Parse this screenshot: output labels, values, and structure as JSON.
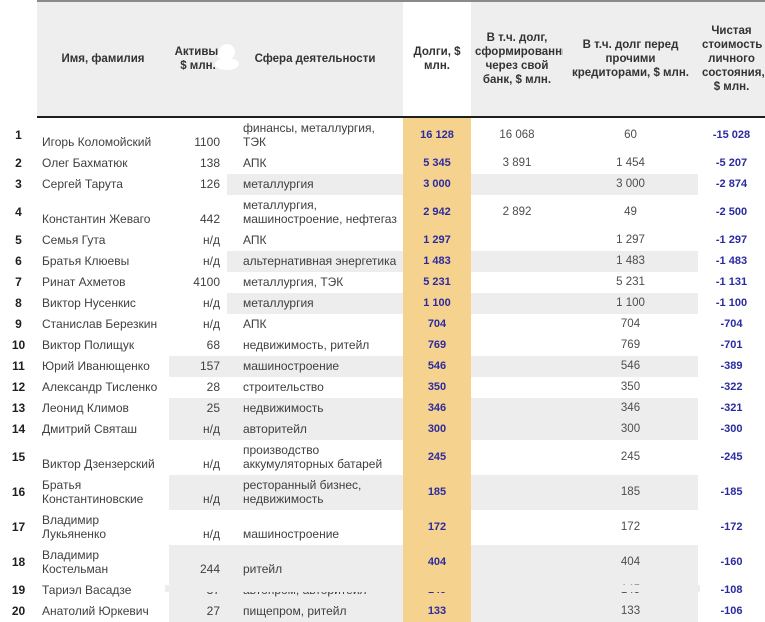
{
  "table": {
    "columns": [
      {
        "key": "name",
        "label": "Имя, фамилия"
      },
      {
        "key": "assets",
        "label": "Активы, $ млн."
      },
      {
        "key": "sphere",
        "label": "Сфера деятельности"
      },
      {
        "key": "debts",
        "label": "Долги, $ млн."
      },
      {
        "key": "own_bank",
        "label": "В т.ч. долг, сформированный через свой банк, $ млн."
      },
      {
        "key": "other_creditors",
        "label": "В т.ч. долг перед прочими кредиторами, $ млн."
      },
      {
        "key": "net_worth",
        "label": "Чистая стоимость личного состояния, $ млн."
      }
    ],
    "rows": [
      {
        "rank": "1",
        "name": "Игорь Коломойский",
        "assets": "1100",
        "sphere": "финансы, металлургия, ТЭК",
        "debts": "16 128",
        "own_bank": "16 068",
        "other_creditors": "60",
        "net_worth": "-15 028",
        "band": "none"
      },
      {
        "rank": "2",
        "name": "Олег Бахматюк",
        "assets": "138",
        "sphere": "АПК",
        "debts": "5 345",
        "own_bank": "3 891",
        "other_creditors": "1 454",
        "net_worth": "-5 207",
        "band": "none"
      },
      {
        "rank": "3",
        "name": "Сергей Тарута",
        "assets": "126",
        "sphere": "металлургия",
        "debts": "3 000",
        "own_bank": "",
        "other_creditors": "3 000",
        "net_worth": "-2 874",
        "band": "sphere"
      },
      {
        "rank": "4",
        "name": "Константин Жеваго",
        "assets": "442",
        "sphere": "металлургия, машиностроение, нефтегаз",
        "debts": "2 942",
        "own_bank": "2 892",
        "other_creditors": "49",
        "net_worth": "-2 500",
        "band": "none"
      },
      {
        "rank": "5",
        "name": "Семья Гута",
        "assets": "н/д",
        "sphere": "АПК",
        "debts": "1 297",
        "own_bank": "",
        "other_creditors": "1 297",
        "net_worth": "-1 297",
        "band": "none"
      },
      {
        "rank": "6",
        "name": "Братья Клюевы",
        "assets": "н/д",
        "sphere": "альтернативная энергетика",
        "debts": "1 483",
        "own_bank": "",
        "other_creditors": "1 483",
        "net_worth": "-1 483",
        "band": "sphere"
      },
      {
        "rank": "7",
        "name": "Ринат Ахметов",
        "assets": "4100",
        "sphere": "металлургия, ТЭК",
        "debts": "5 231",
        "own_bank": "",
        "other_creditors": "5 231",
        "net_worth": "-1 131",
        "band": "none"
      },
      {
        "rank": "8",
        "name": "Виктор Нусенкис",
        "assets": "н/д",
        "sphere": "металлургия",
        "debts": "1 100",
        "own_bank": "",
        "other_creditors": "1 100",
        "net_worth": "-1 100",
        "band": "sphere"
      },
      {
        "rank": "9",
        "name": "Станислав Березкин",
        "assets": "н/д",
        "sphere": "АПК",
        "debts": "704",
        "own_bank": "",
        "other_creditors": "704",
        "net_worth": "-704",
        "band": "none"
      },
      {
        "rank": "10",
        "name": "Виктор Полищук",
        "assets": "68",
        "sphere": "недвижимость, ритейл",
        "debts": "769",
        "own_bank": "",
        "other_creditors": "769",
        "net_worth": "-701",
        "band": "none"
      },
      {
        "rank": "11",
        "name": "Юрий Иванющенко",
        "assets": "157",
        "sphere": "машиностроение",
        "debts": "546",
        "own_bank": "",
        "other_creditors": "546",
        "net_worth": "-389",
        "band": "assets"
      },
      {
        "rank": "12",
        "name": "Александр Тисленко",
        "assets": "28",
        "sphere": "строительство",
        "debts": "350",
        "own_bank": "",
        "other_creditors": "350",
        "net_worth": "-322",
        "band": "none"
      },
      {
        "rank": "13",
        "name": "Леонид Климов",
        "assets": "25",
        "sphere": "недвижимость",
        "debts": "346",
        "own_bank": "",
        "other_creditors": "346",
        "net_worth": "-321",
        "band": "assets"
      },
      {
        "rank": "14",
        "name": "Дмитрий Святаш",
        "assets": "н/д",
        "sphere": "авторитейл",
        "debts": "300",
        "own_bank": "",
        "other_creditors": "300",
        "net_worth": "-300",
        "band": "assets"
      },
      {
        "rank": "15",
        "name": "Виктор Дзензерский",
        "assets": "н/д",
        "sphere": "производство аккумуляторных батарей",
        "debts": "245",
        "own_bank": "",
        "other_creditors": "245",
        "net_worth": "-245",
        "band": "none"
      },
      {
        "rank": "16",
        "name": "Братья Константиновские",
        "assets": "н/д",
        "sphere": "ресторанный бизнес, недвижимость",
        "debts": "185",
        "own_bank": "",
        "other_creditors": "185",
        "net_worth": "-185",
        "band": "assets"
      },
      {
        "rank": "17",
        "name": "Владимир Лукьяненко",
        "assets": "н/д",
        "sphere": "машиностроение",
        "debts": "172",
        "own_bank": "",
        "other_creditors": "172",
        "net_worth": "-172",
        "band": "none"
      },
      {
        "rank": "18",
        "name": "Владимир Костельман",
        "assets": "244",
        "sphere": "ритейл",
        "debts": "404",
        "own_bank": "",
        "other_creditors": "404",
        "net_worth": "-160",
        "band": "assets"
      },
      {
        "rank": "19",
        "name": "Тариэл Васадзе",
        "assets": "37",
        "sphere": "автопром, авторитейл",
        "debts": "145",
        "own_bank": "",
        "other_creditors": "145",
        "net_worth": "-108",
        "band": "assets"
      },
      {
        "rank": "20",
        "name": "Анатолий Юркевич",
        "assets": "27",
        "sphere": "пищепром, ритейл",
        "debts": "133",
        "own_bank": "",
        "other_creditors": "133",
        "net_worth": "-106",
        "band": "assets"
      }
    ]
  },
  "colors": {
    "debts_column_bg": "#f6d28f",
    "negative_value_text": "#2b2ba0",
    "band_gray": "#ededed",
    "header_bg": "#eeeeee"
  }
}
